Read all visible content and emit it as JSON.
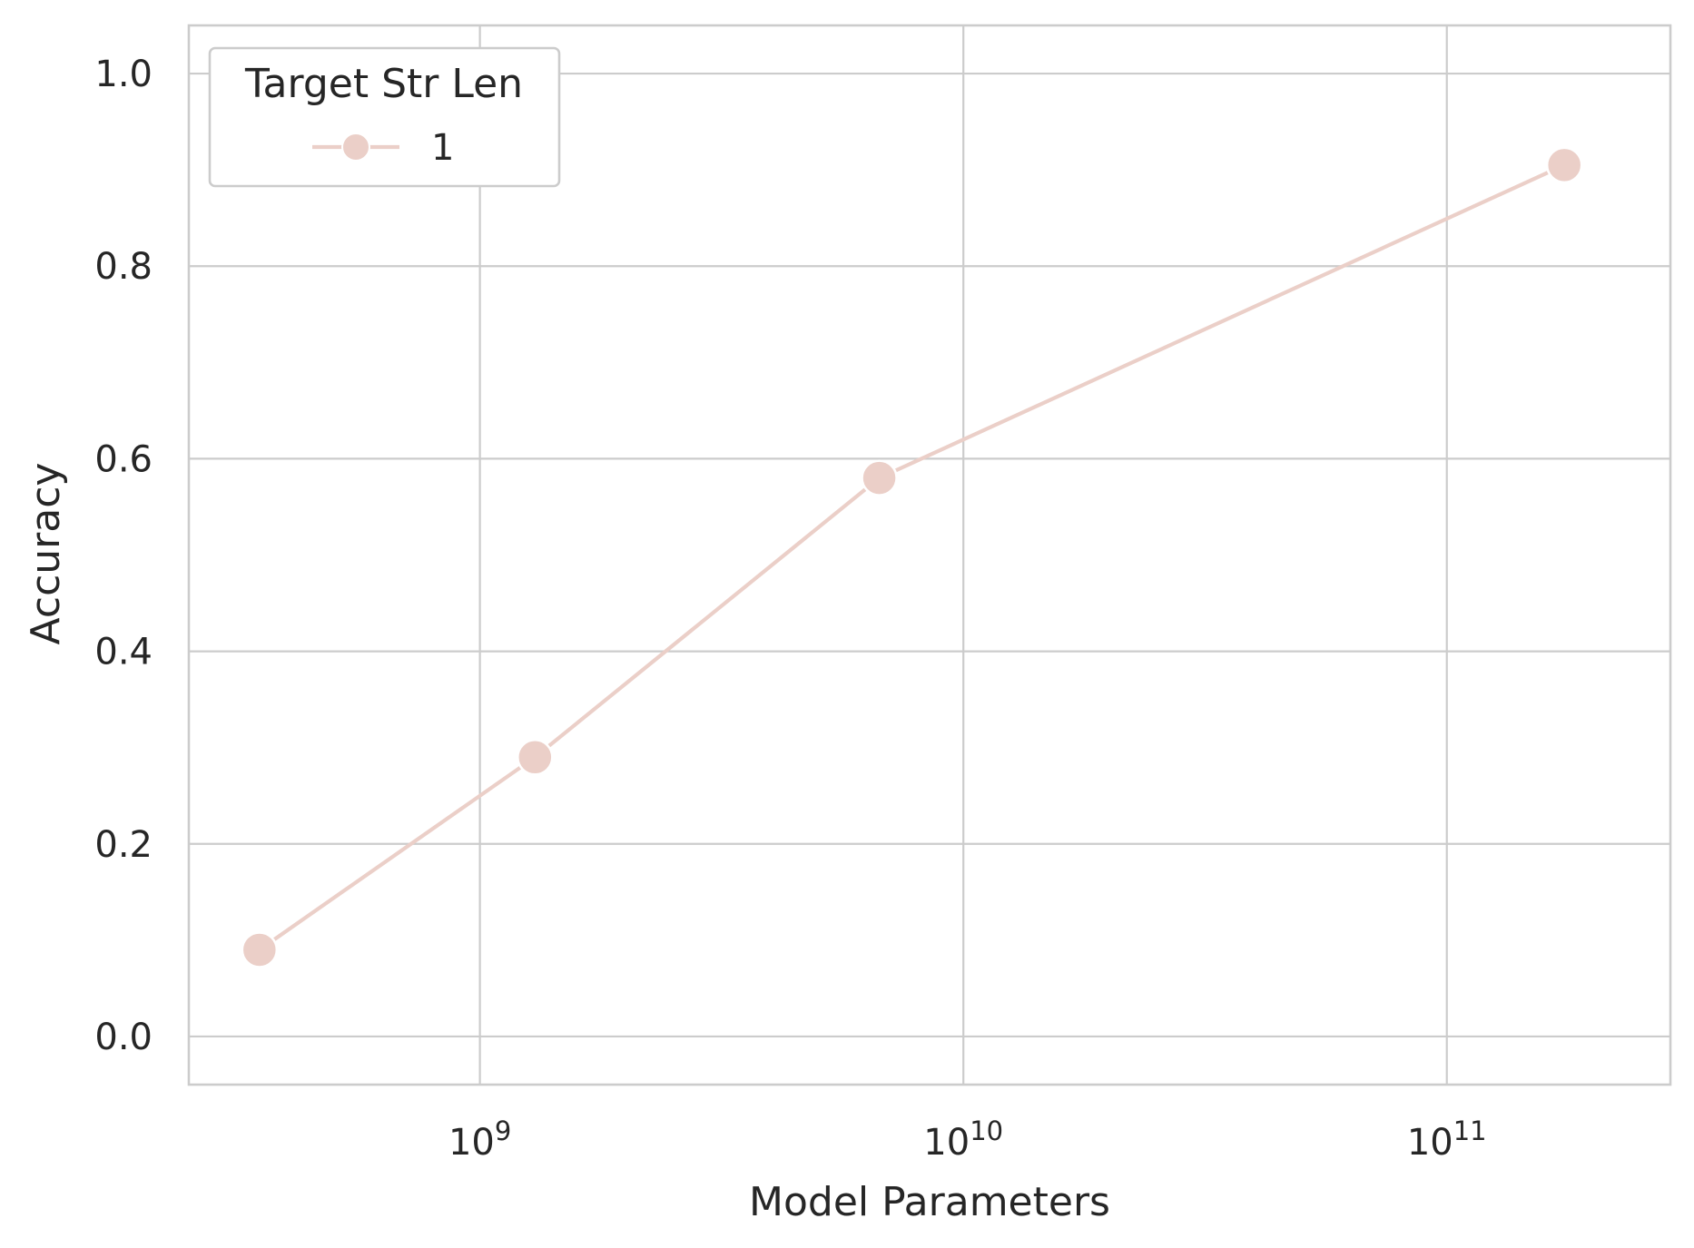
{
  "chart_data": {
    "type": "line",
    "xscale": "log",
    "x": [
      350000000,
      1300000000,
      6700000000,
      175000000000
    ],
    "series": [
      {
        "name": "1",
        "values": [
          0.09,
          0.29,
          0.58,
          0.905
        ],
        "color": "#ebcfc8"
      }
    ],
    "xlabel": "Model Parameters",
    "ylabel": "Accuracy",
    "xlim": [
      250000000,
      290000000000
    ],
    "ylim": [
      -0.05,
      1.05
    ],
    "xticks": [
      {
        "value": 1000000000,
        "base": "10",
        "exp": "9"
      },
      {
        "value": 10000000000,
        "base": "10",
        "exp": "10"
      },
      {
        "value": 100000000000,
        "base": "10",
        "exp": "11"
      }
    ],
    "yticks": [
      {
        "value": 0.0,
        "label": "0.0"
      },
      {
        "value": 0.2,
        "label": "0.2"
      },
      {
        "value": 0.4,
        "label": "0.4"
      },
      {
        "value": 0.6,
        "label": "0.6"
      },
      {
        "value": 0.8,
        "label": "0.8"
      },
      {
        "value": 1.0,
        "label": "1.0"
      }
    ],
    "grid": true,
    "legend": {
      "title": "Target Str Len",
      "position": "top-left"
    },
    "colors": {
      "grid": "#cccccc",
      "text": "#262626",
      "background": "#ffffff"
    }
  }
}
